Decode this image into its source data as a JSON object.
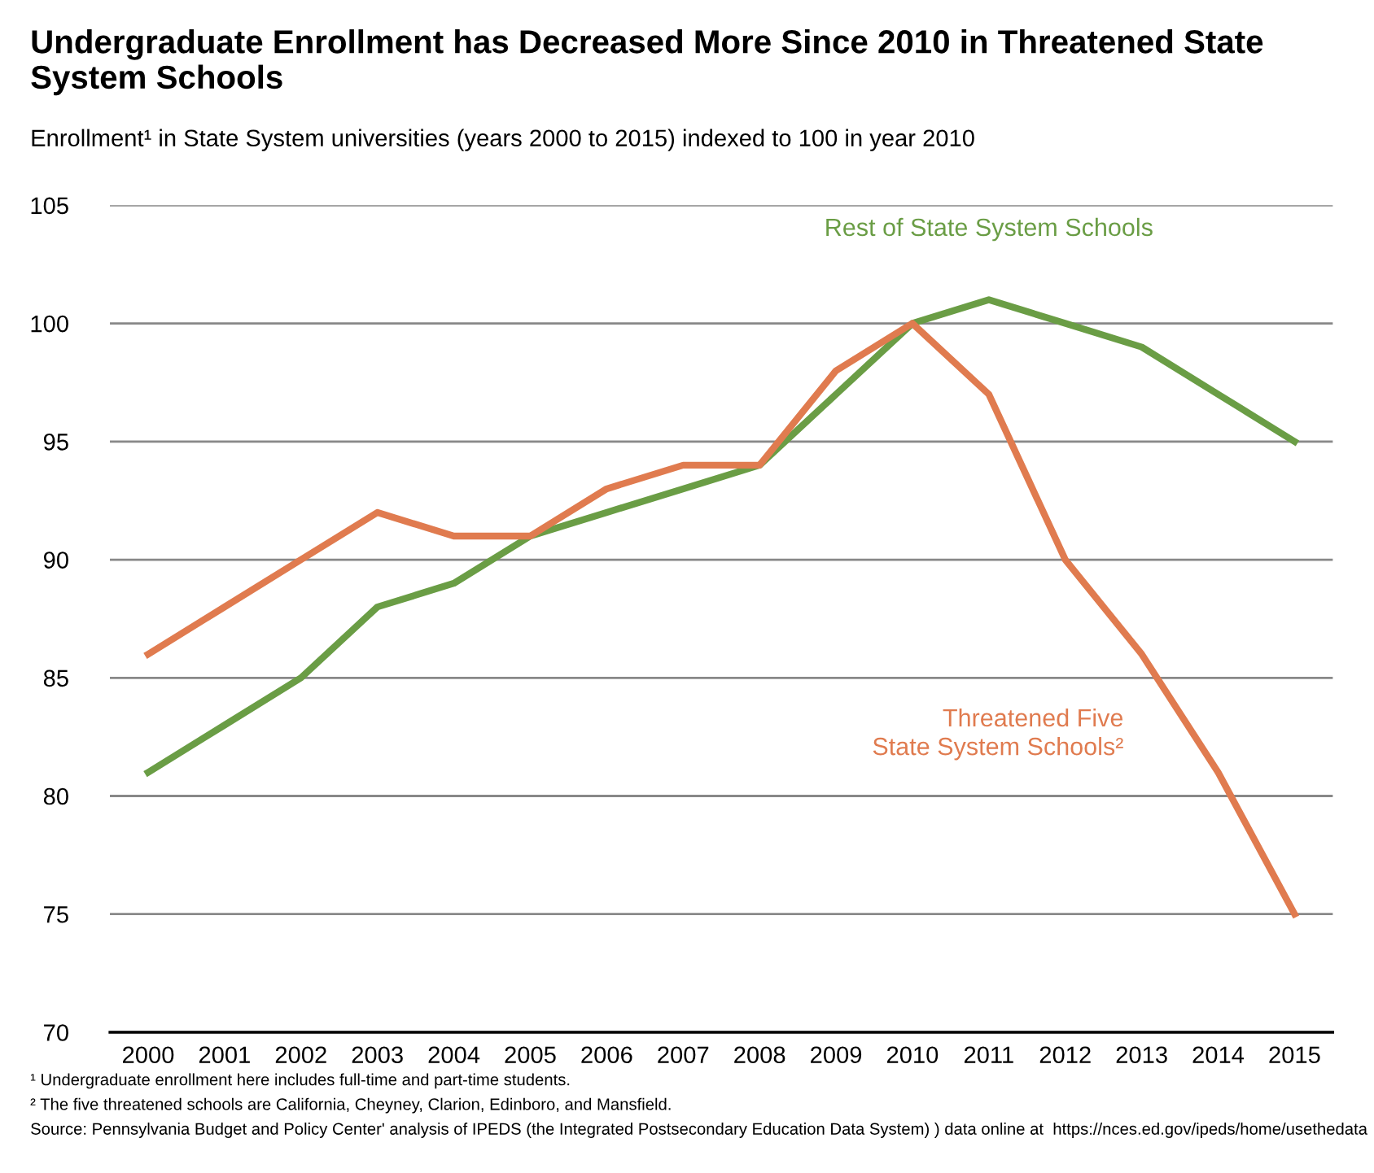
{
  "chart_data": {
    "type": "line",
    "title": "Undergraduate Enrollment has Decreased More Since 2010 in Threatened State System Schools",
    "subtitle": "Enrollment¹ in State System universities (years 2000 to 2015) indexed to 100 in year 2010",
    "categories": [
      "2000",
      "2001",
      "2002",
      "2003",
      "2004",
      "2005",
      "2006",
      "2007",
      "2008",
      "2009",
      "2010",
      "2011",
      "2012",
      "2013",
      "2014",
      "2015"
    ],
    "series": [
      {
        "name": "Rest of State System Schools",
        "color": "#6a9d45",
        "values": [
          81,
          83,
          85,
          88,
          89,
          91,
          92,
          93,
          94,
          97,
          100,
          101,
          100,
          99,
          97,
          95
        ]
      },
      {
        "name": "Threatened Five\nState System Schools²",
        "color": "#e07b4f",
        "values": [
          86,
          88,
          90,
          92,
          91,
          91,
          93,
          94,
          94,
          98,
          100,
          97,
          90,
          86,
          81,
          75
        ]
      }
    ],
    "ylim": [
      70,
      105
    ],
    "yticks": [
      70,
      75,
      80,
      85,
      90,
      95,
      100,
      105
    ],
    "grid": "y",
    "legend": false,
    "marker": "none",
    "line_style": "solid",
    "annotations": [
      "¹ Undergraduate enrollment here includes full-time and part-time students.",
      "² The five threatened schools are California, Cheyney, Clarion, Edinboro, and Mansfield.",
      "Source: Pennsylvania Budget and Policy Center' analysis of IPEDS (the Integrated Postsecondary Education Data System) ) data online at  https://nces.ed.gov/ipeds/home/usethedata"
    ]
  }
}
